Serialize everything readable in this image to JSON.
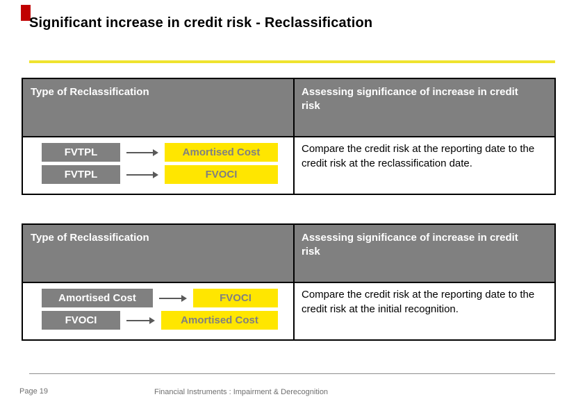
{
  "colors": {
    "accent_red": "#C00000",
    "title_rule_yellow": "#EFE32F",
    "box_yellow": "#FFE600",
    "box_gray": "#808080",
    "arrow_gray": "#595959",
    "header_bg_gray": "#808080",
    "footer_text_gray": "#6E6E6E"
  },
  "slide": {
    "title": "Significant increase in credit risk - Reclassification",
    "footer": {
      "page_label": "Page 19",
      "doc_title": "Financial Instruments : Impairment & Derecognition"
    }
  },
  "tables": [
    {
      "header": {
        "left": "Type of Reclassification",
        "right": "Assessing significance of increase in credit risk"
      },
      "flows": [
        {
          "from": "FVTPL",
          "to": "Amortised Cost"
        },
        {
          "from": "FVTPL",
          "to": "FVOCI"
        }
      ],
      "assessment": "Compare the credit risk at the reporting date to the credit risk at the reclassification date."
    },
    {
      "header": {
        "left": "Type of Reclassification",
        "right": "Assessing significance of increase in credit risk"
      },
      "flows": [
        {
          "from": "Amortised Cost",
          "to": "FVOCI"
        },
        {
          "from": "FVOCI",
          "to": "Amortised Cost"
        }
      ],
      "assessment": "Compare the credit risk at the reporting date to the credit risk at the initial recognition."
    }
  ]
}
